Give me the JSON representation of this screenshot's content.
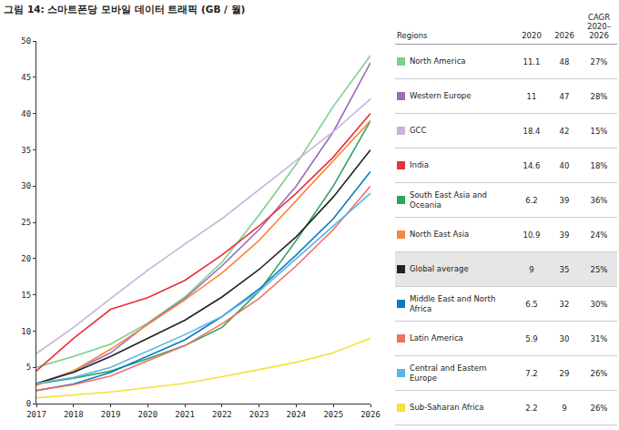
{
  "chart_data": {
    "type": "line",
    "title": "그림 14: 스마트폰당 모바일 데이터 트래픽 (GB / 월)",
    "x": [
      2017,
      2018,
      2019,
      2020,
      2021,
      2022,
      2023,
      2024,
      2025,
      2026
    ],
    "xlim": [
      2017,
      2026
    ],
    "xticks": [
      2017,
      2018,
      2019,
      2020,
      2021,
      2022,
      2023,
      2024,
      2025,
      2026
    ],
    "ylim": [
      0,
      50
    ],
    "yticks": [
      0,
      5,
      10,
      15,
      20,
      25,
      30,
      35,
      40,
      45,
      50
    ],
    "grid": false,
    "series": [
      {
        "name": "North America",
        "color": "#7ccf8a",
        "values": [
          5,
          6.5,
          8.2,
          11.1,
          14.7,
          19.5,
          26,
          33,
          41,
          48
        ]
      },
      {
        "name": "Western Europe",
        "color": "#9b6cb7",
        "values": [
          2.7,
          4.5,
          7,
          11,
          14.5,
          19,
          24,
          30,
          37.5,
          47
        ]
      },
      {
        "name": "GCC",
        "color": "#c9b2dc",
        "values": [
          6.9,
          10.5,
          14.5,
          18.4,
          22,
          25.5,
          29.5,
          33.5,
          37.5,
          42
        ]
      },
      {
        "name": "India",
        "color": "#e8313c",
        "values": [
          4.5,
          9,
          13,
          14.6,
          17,
          20.5,
          24.5,
          29,
          34,
          40
        ]
      },
      {
        "name": "South East Asia and Oceania",
        "color": "#2ea35b",
        "values": [
          2.7,
          3.5,
          4.5,
          6.2,
          8,
          10.5,
          15.5,
          22.5,
          30,
          39
        ]
      },
      {
        "name": "North East Asia",
        "color": "#f5893d",
        "values": [
          2.5,
          4.5,
          7.5,
          10.9,
          14.3,
          18,
          22.5,
          28,
          33.5,
          39
        ]
      },
      {
        "name": "Global average",
        "color": "#222222",
        "values": [
          2.8,
          4.3,
          6.5,
          9,
          11.5,
          14.7,
          18.5,
          23,
          28.5,
          35
        ]
      },
      {
        "name": "Middle East and North Africa",
        "color": "#0a7ac4",
        "values": [
          1.8,
          2.7,
          4.3,
          6.5,
          8.8,
          12,
          15.8,
          20.5,
          25.5,
          32
        ]
      },
      {
        "name": "Latin America",
        "color": "#f07262",
        "values": [
          1.8,
          2.6,
          3.8,
          5.9,
          8,
          11,
          14.5,
          19,
          24,
          30
        ]
      },
      {
        "name": "Central and Eastern Europe",
        "color": "#5bb4e5",
        "values": [
          2.8,
          3.6,
          5,
          7.2,
          9.5,
          12,
          15.5,
          20,
          24.5,
          29
        ]
      },
      {
        "name": "Sub-Saharan Africa",
        "color": "#f5e03a",
        "values": [
          0.8,
          1.2,
          1.6,
          2.2,
          2.8,
          3.7,
          4.7,
          5.7,
          7,
          9
        ]
      }
    ]
  },
  "table": {
    "header": [
      "Regions",
      "2020",
      "2026",
      "CAGR 2020–2026"
    ],
    "rows": [
      [
        "North America",
        "11.1",
        "48",
        "27%"
      ],
      [
        "Western Europe",
        "11",
        "47",
        "28%"
      ],
      [
        "GCC",
        "18.4",
        "42",
        "15%"
      ],
      [
        "India",
        "14.6",
        "40",
        "18%"
      ],
      [
        "South East Asia and Oceania",
        "6.2",
        "39",
        "36%"
      ],
      [
        "North East Asia",
        "10.9",
        "39",
        "24%"
      ],
      [
        "Global average",
        "9",
        "35",
        "25%"
      ],
      [
        "Middle East and North Africa",
        "6.5",
        "32",
        "30%"
      ],
      [
        "Latin America",
        "5.9",
        "30",
        "31%"
      ],
      [
        "Central and Eastern Europe",
        "7.2",
        "29",
        "26%"
      ],
      [
        "Sub-Saharan Africa",
        "2.2",
        "9",
        "26%"
      ]
    ]
  }
}
